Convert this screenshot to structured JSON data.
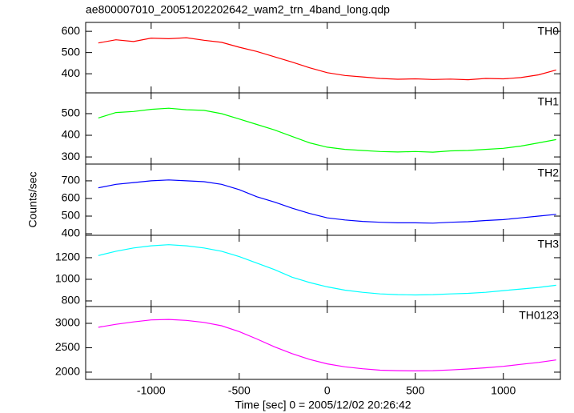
{
  "chart_data": [
    {
      "type": "line",
      "title": "ae800007010_20051202202642_wam2_trn_4band_long.qdp",
      "x": [
        -1300,
        -1200,
        -1100,
        -1000,
        -900,
        -800,
        -700,
        -600,
        -500,
        -400,
        -300,
        -200,
        -100,
        0,
        100,
        200,
        300,
        400,
        500,
        600,
        700,
        800,
        900,
        1000,
        1100,
        1200,
        1300
      ],
      "series": [
        {
          "name": "TH0",
          "color": "#ff0000",
          "values": [
            545,
            560,
            552,
            568,
            565,
            570,
            558,
            548,
            525,
            505,
            480,
            455,
            428,
            405,
            392,
            385,
            378,
            374,
            376,
            373,
            375,
            372,
            378,
            376,
            382,
            395,
            418
          ]
        }
      ],
      "xlim": [
        -1372,
        1324
      ],
      "xticks": [
        -1000,
        -500,
        0,
        500,
        1000
      ],
      "ylim": [
        310,
        642
      ],
      "yticks": [
        400,
        500,
        600
      ]
    },
    {
      "type": "line",
      "x": [
        -1300,
        -1200,
        -1100,
        -1000,
        -900,
        -800,
        -700,
        -600,
        -500,
        -400,
        -300,
        -200,
        -100,
        0,
        100,
        200,
        300,
        400,
        500,
        600,
        700,
        800,
        900,
        1000,
        1100,
        1200,
        1300
      ],
      "series": [
        {
          "name": "TH1",
          "color": "#00ff00",
          "values": [
            480,
            505,
            510,
            520,
            525,
            518,
            515,
            500,
            475,
            450,
            425,
            395,
            365,
            345,
            335,
            330,
            325,
            323,
            325,
            322,
            328,
            330,
            335,
            340,
            350,
            365,
            380
          ]
        }
      ],
      "xlim": [
        -1372,
        1324
      ],
      "xticks": [
        -1000,
        -500,
        0,
        500,
        1000
      ],
      "ylim": [
        267,
        596
      ],
      "yticks": [
        300,
        400,
        500
      ]
    },
    {
      "type": "line",
      "y_label": "Counts/sec",
      "x": [
        -1300,
        -1200,
        -1100,
        -1000,
        -900,
        -800,
        -700,
        -600,
        -500,
        -400,
        -300,
        -200,
        -100,
        0,
        100,
        200,
        300,
        400,
        500,
        600,
        700,
        800,
        900,
        1000,
        1100,
        1200,
        1300
      ],
      "series": [
        {
          "name": "TH2",
          "color": "#0000ff",
          "values": [
            660,
            680,
            690,
            700,
            705,
            700,
            695,
            680,
            650,
            610,
            580,
            545,
            515,
            490,
            478,
            470,
            465,
            462,
            462,
            460,
            465,
            468,
            475,
            480,
            490,
            500,
            510
          ]
        }
      ],
      "xlim": [
        -1372,
        1324
      ],
      "xticks": [
        -1000,
        -500,
        0,
        500,
        1000
      ],
      "ylim": [
        391,
        795
      ],
      "yticks": [
        400,
        500,
        600,
        700
      ]
    },
    {
      "type": "line",
      "x": [
        -1300,
        -1200,
        -1100,
        -1000,
        -900,
        -800,
        -700,
        -600,
        -500,
        -400,
        -300,
        -200,
        -100,
        0,
        100,
        200,
        300,
        400,
        500,
        600,
        700,
        800,
        900,
        1000,
        1100,
        1200,
        1300
      ],
      "series": [
        {
          "name": "TH3",
          "color": "#00ffff",
          "values": [
            1220,
            1260,
            1290,
            1310,
            1320,
            1310,
            1290,
            1260,
            1210,
            1150,
            1090,
            1020,
            970,
            930,
            900,
            880,
            865,
            858,
            855,
            858,
            865,
            870,
            880,
            895,
            910,
            925,
            945
          ]
        }
      ],
      "xlim": [
        -1372,
        1324
      ],
      "xticks": [
        -1000,
        -500,
        0,
        500,
        1000
      ],
      "ylim": [
        748,
        1407
      ],
      "yticks": [
        800,
        1000,
        1200
      ]
    },
    {
      "type": "line",
      "x_label": "Time [sec] 0 = 2005/12/02 20:26:42",
      "x": [
        -1300,
        -1200,
        -1100,
        -1000,
        -900,
        -800,
        -700,
        -600,
        -500,
        -400,
        -300,
        -200,
        -100,
        0,
        100,
        200,
        300,
        400,
        500,
        600,
        700,
        800,
        900,
        1000,
        1100,
        1200,
        1300
      ],
      "series": [
        {
          "name": "TH0123",
          "color": "#ff00ff",
          "values": [
            2920,
            2980,
            3030,
            3070,
            3080,
            3060,
            3020,
            2950,
            2830,
            2680,
            2520,
            2380,
            2260,
            2170,
            2110,
            2070,
            2040,
            2030,
            2025,
            2030,
            2045,
            2065,
            2090,
            2120,
            2160,
            2200,
            2250
          ]
        }
      ],
      "xlim": [
        -1372,
        1324
      ],
      "xticks": [
        -1000,
        -500,
        0,
        500,
        1000
      ],
      "ylim": [
        1852,
        3344
      ],
      "yticks": [
        2000,
        2500,
        3000
      ]
    }
  ]
}
